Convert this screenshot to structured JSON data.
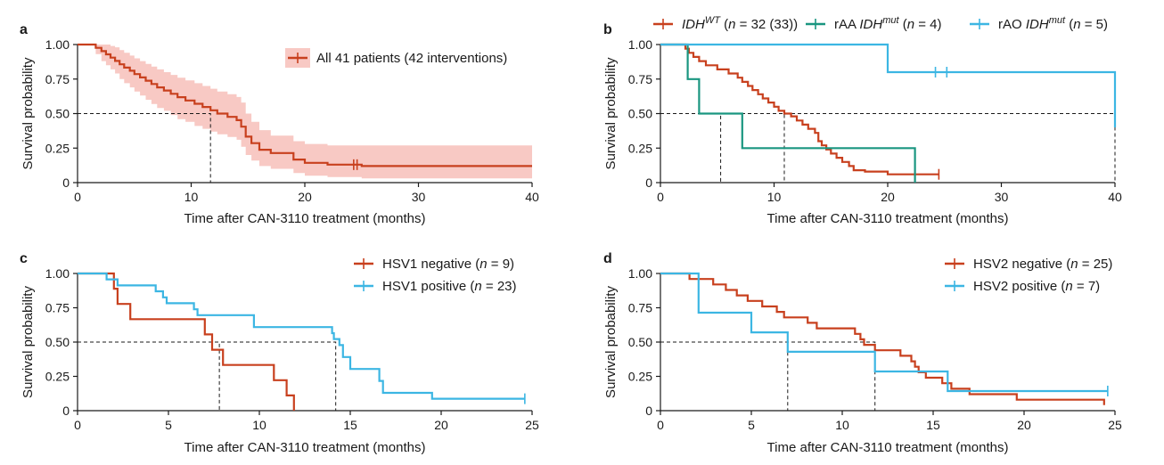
{
  "colors": {
    "red": "#c8401e",
    "teal": "#1a9680",
    "blue": "#3cb6e3",
    "ci_fill": "#f8c9c4"
  },
  "chart_data": [
    {
      "type": "line",
      "panel": "a",
      "xlabel": "Time after CAN-3110 treatment (months)",
      "ylabel": "Survival probability",
      "xlim": [
        0,
        40
      ],
      "ylim": [
        0,
        1
      ],
      "xticks": [
        0,
        10,
        20,
        30,
        40
      ],
      "yticks": [
        "0",
        "0.25",
        "0.50",
        "0.75",
        "1.00"
      ],
      "legend_position": "top-right",
      "median_lines": [
        {
          "x": 11.7,
          "y": 0.5
        }
      ],
      "series": [
        {
          "name": "All 41 patients (42 interventions)",
          "color": "red",
          "ci": true,
          "x": [
            0,
            1.6,
            2.1,
            2.5,
            2.9,
            3.3,
            3.7,
            4.1,
            4.6,
            5.0,
            5.5,
            6.0,
            6.5,
            7.0,
            7.6,
            8.2,
            8.8,
            9.5,
            10.3,
            11.0,
            11.7,
            12.3,
            13.2,
            14.0,
            14.4,
            14.8,
            15.3,
            16.0,
            17.0,
            19.0,
            20.0,
            22.0,
            24.5,
            25.0,
            40
          ],
          "y": [
            1.0,
            0.976,
            0.952,
            0.929,
            0.905,
            0.881,
            0.857,
            0.833,
            0.81,
            0.786,
            0.762,
            0.738,
            0.714,
            0.69,
            0.667,
            0.643,
            0.619,
            0.595,
            0.571,
            0.548,
            0.524,
            0.5,
            0.476,
            0.452,
            0.405,
            0.333,
            0.286,
            0.238,
            0.214,
            0.167,
            0.143,
            0.13,
            0.13,
            0.12,
            0.12
          ],
          "ci_lower": [
            1.0,
            0.93,
            0.88,
            0.85,
            0.82,
            0.79,
            0.75,
            0.72,
            0.69,
            0.66,
            0.63,
            0.6,
            0.57,
            0.54,
            0.52,
            0.49,
            0.46,
            0.44,
            0.41,
            0.39,
            0.37,
            0.35,
            0.33,
            0.31,
            0.26,
            0.2,
            0.16,
            0.12,
            0.1,
            0.07,
            0.05,
            0.04,
            0.04,
            0.03,
            0.03
          ],
          "ci_upper": [
            1.0,
            1.0,
            1.0,
            1.0,
            0.99,
            0.98,
            0.96,
            0.94,
            0.92,
            0.9,
            0.88,
            0.86,
            0.84,
            0.82,
            0.8,
            0.78,
            0.76,
            0.74,
            0.72,
            0.7,
            0.68,
            0.66,
            0.64,
            0.62,
            0.58,
            0.5,
            0.44,
            0.38,
            0.34,
            0.3,
            0.28,
            0.27,
            0.27,
            0.27,
            0.27
          ],
          "censored": [
            24.3,
            24.6
          ]
        }
      ]
    },
    {
      "type": "line",
      "panel": "b",
      "xlabel": "Time after CAN-3110 treatment (months)",
      "ylabel": "Survival probability",
      "xlim": [
        0,
        40
      ],
      "ylim": [
        0,
        1
      ],
      "xticks": [
        0,
        10,
        20,
        30,
        40
      ],
      "yticks": [
        "0",
        "0.25",
        "0.50",
        "0.75",
        "1.00"
      ],
      "legend_position": "top",
      "median_lines": [
        {
          "x": 5.3,
          "y": 0.5
        },
        {
          "x": 10.9,
          "y": 0.5
        },
        {
          "x": 40,
          "y": 0.5
        }
      ],
      "series": [
        {
          "name": "IDH^WT (n = 32 (33))",
          "name_main": "IDH",
          "name_sup": "WT",
          "name_rest": " (n = 32 (33))",
          "color": "red",
          "x": [
            0,
            2.2,
            2.5,
            2.9,
            3.4,
            4.0,
            5.0,
            6.0,
            6.8,
            7.2,
            7.7,
            8.1,
            8.6,
            9.0,
            9.5,
            10.0,
            10.4,
            10.9,
            11.5,
            12.0,
            12.5,
            13.0,
            13.6,
            13.9,
            14.2,
            14.6,
            15.0,
            15.5,
            16.0,
            16.6,
            17.0,
            18.0,
            20.0,
            24.5
          ],
          "y": [
            1.0,
            0.97,
            0.94,
            0.91,
            0.88,
            0.85,
            0.82,
            0.79,
            0.76,
            0.73,
            0.7,
            0.67,
            0.64,
            0.61,
            0.58,
            0.55,
            0.52,
            0.5,
            0.48,
            0.45,
            0.42,
            0.39,
            0.36,
            0.3,
            0.27,
            0.24,
            0.21,
            0.18,
            0.15,
            0.12,
            0.09,
            0.08,
            0.06,
            0.06
          ],
          "censored": [
            24.5
          ]
        },
        {
          "name": "rAA IDH^mut (n = 4)",
          "name_main": "rAA IDH",
          "name_sup": "mut",
          "name_rest": " (n = 4)",
          "color": "teal",
          "x": [
            0,
            2.4,
            3.4,
            7.2,
            22.4
          ],
          "y": [
            1.0,
            0.75,
            0.5,
            0.25,
            0.0
          ],
          "censored": []
        },
        {
          "name": "rAO IDH^mut (n = 5)",
          "name_main": "rAO IDH",
          "name_sup": "mut",
          "name_rest": " (n = 5)",
          "color": "blue",
          "x": [
            0,
            20.0,
            40.0
          ],
          "y": [
            1.0,
            0.8,
            0.4
          ],
          "censored": [
            24.2,
            25.2
          ]
        }
      ]
    },
    {
      "type": "line",
      "panel": "c",
      "xlabel": "Time after CAN-3110 treatment (months)",
      "ylabel": "Survival probability",
      "xlim": [
        0,
        25
      ],
      "ylim": [
        0,
        1
      ],
      "xticks": [
        0,
        5,
        10,
        15,
        20,
        25
      ],
      "yticks": [
        "0",
        "0.25",
        "0.50",
        "0.75",
        "1.00"
      ],
      "legend_position": "top-right",
      "median_lines": [
        {
          "x": 7.8,
          "y": 0.5
        },
        {
          "x": 14.2,
          "y": 0.5
        }
      ],
      "series": [
        {
          "name": "HSV1 negative (n = 9)",
          "name_main": "HSV1 negative",
          "name_sup": "",
          "name_rest": " (n = 9)",
          "color": "red",
          "x": [
            0,
            2.0,
            2.2,
            2.9,
            7.0,
            7.4,
            8.0,
            10.8,
            11.5,
            11.9
          ],
          "y": [
            1.0,
            0.889,
            0.778,
            0.667,
            0.556,
            0.444,
            0.333,
            0.222,
            0.111,
            0.0
          ],
          "censored": []
        },
        {
          "name": "HSV1 positive (n = 23)",
          "name_main": "HSV1 positive",
          "name_sup": "",
          "name_rest": " (n = 23)",
          "color": "blue",
          "x": [
            0,
            1.6,
            2.2,
            4.3,
            4.7,
            4.9,
            6.4,
            6.6,
            9.7,
            14.0,
            14.1,
            14.4,
            14.6,
            15.0,
            16.6,
            16.8,
            19.5,
            24.6
          ],
          "y": [
            1.0,
            0.957,
            0.913,
            0.87,
            0.826,
            0.783,
            0.739,
            0.696,
            0.609,
            0.565,
            0.522,
            0.478,
            0.391,
            0.304,
            0.217,
            0.13,
            0.087,
            0.087
          ],
          "censored": [
            24.6
          ]
        }
      ]
    },
    {
      "type": "line",
      "panel": "d",
      "xlabel": "Time after CAN-3110 treatment (months)",
      "ylabel": "Survival probability",
      "xlim": [
        0,
        25
      ],
      "ylim": [
        0,
        1
      ],
      "xticks": [
        0,
        5,
        10,
        15,
        20,
        25
      ],
      "yticks": [
        "0",
        "0.25",
        "0.50",
        "0.75",
        "1.00"
      ],
      "legend_position": "top-right",
      "median_lines": [
        {
          "x": 7.0,
          "y": 0.5
        },
        {
          "x": 11.8,
          "y": 0.5
        }
      ],
      "series": [
        {
          "name": "HSV2 negative (n = 25)",
          "name_main": "HSV2 negative",
          "name_sup": "",
          "name_rest": " (n = 25)",
          "color": "red",
          "x": [
            0,
            1.6,
            2.9,
            3.6,
            4.2,
            4.8,
            5.6,
            6.4,
            6.8,
            8.1,
            8.6,
            10.7,
            11.0,
            11.2,
            11.8,
            13.2,
            13.8,
            14.0,
            14.2,
            14.6,
            15.5,
            16.0,
            17.0,
            19.6,
            24.4
          ],
          "y": [
            1.0,
            0.96,
            0.92,
            0.88,
            0.84,
            0.8,
            0.76,
            0.72,
            0.68,
            0.64,
            0.6,
            0.56,
            0.52,
            0.48,
            0.44,
            0.4,
            0.36,
            0.32,
            0.28,
            0.24,
            0.2,
            0.16,
            0.12,
            0.08,
            0.04
          ],
          "censored": []
        },
        {
          "name": "HSV2 positive (n = 7)",
          "name_main": "HSV2 positive",
          "name_sup": "",
          "name_rest": " (n = 7)",
          "color": "blue",
          "x": [
            0,
            2.1,
            5.0,
            7.0,
            11.8,
            15.8,
            24.6
          ],
          "y": [
            1.0,
            0.714,
            0.571,
            0.429,
            0.286,
            0.143,
            0.143
          ],
          "censored": [
            24.6
          ]
        }
      ]
    }
  ]
}
